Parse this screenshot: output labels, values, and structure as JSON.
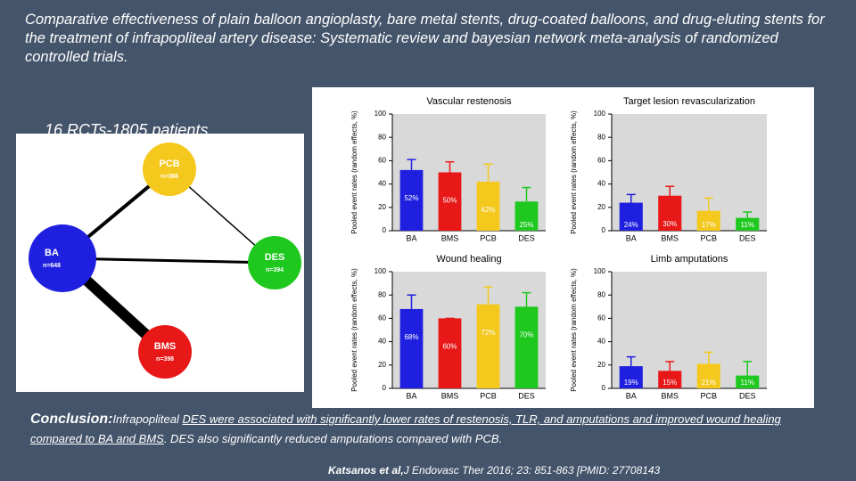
{
  "title": "Comparative effectiveness of plain balloon angioplasty, bare metal stents, drug-coated balloons, and drug-eluting stents for the treatment of infrapopliteal artery disease: Systematic review and bayesian network meta-analysis of randomized controlled trials.",
  "subtitle": "16 RCTs-1805 patients",
  "network": {
    "nodes": [
      {
        "label": "PCB",
        "n": "n=366",
        "color": "#f4c81c"
      },
      {
        "label": "BA",
        "n": "n=648",
        "color": "#1f1fe0"
      },
      {
        "label": "DES",
        "n": "n=394",
        "color": "#1ec81e"
      },
      {
        "label": "BMS",
        "n": "n=398",
        "color": "#e81818"
      }
    ]
  },
  "chart_data": [
    {
      "type": "bar",
      "title": "Vascular restenosis",
      "ylabel": "Pooled event rates (random effects, %)",
      "categories": [
        "BA",
        "BMS",
        "PCB",
        "DES"
      ],
      "values": [
        52,
        50,
        42,
        25
      ],
      "value_labels": [
        "52%",
        "50%",
        "42%",
        "25%"
      ],
      "errors": [
        9,
        9,
        15,
        12
      ],
      "colors": [
        "#1f1fe0",
        "#e81818",
        "#f4c81c",
        "#1ec81e"
      ],
      "ylim": [
        0,
        100
      ],
      "yticks": [
        0,
        20,
        40,
        60,
        80,
        100
      ]
    },
    {
      "type": "bar",
      "title": "Target lesion revascularization",
      "ylabel": "Pooled event rates (random effects, %)",
      "categories": [
        "BA",
        "BMS",
        "PCB",
        "DES"
      ],
      "values": [
        24,
        30,
        17,
        11
      ],
      "value_labels": [
        "24%",
        "30%",
        "17%",
        "11%"
      ],
      "errors": [
        7,
        8,
        11,
        5
      ],
      "colors": [
        "#1f1fe0",
        "#e81818",
        "#f4c81c",
        "#1ec81e"
      ],
      "ylim": [
        0,
        100
      ],
      "yticks": [
        0,
        20,
        40,
        60,
        80,
        100
      ]
    },
    {
      "type": "bar",
      "title": "Wound healing",
      "ylabel": "Pooled event rates (random effects, %)",
      "categories": [
        "BA",
        "BMS",
        "PCB",
        "DES"
      ],
      "values": [
        68,
        60,
        72,
        70
      ],
      "value_labels": [
        "68%",
        "60%",
        "72%",
        "70%"
      ],
      "errors": [
        12,
        0,
        15,
        12
      ],
      "colors": [
        "#1f1fe0",
        "#e81818",
        "#f4c81c",
        "#1ec81e"
      ],
      "ylim": [
        0,
        100
      ],
      "yticks": [
        0,
        20,
        40,
        60,
        80,
        100
      ]
    },
    {
      "type": "bar",
      "title": "Limb amputations",
      "ylabel": "Pooled event rates (random effects, %)",
      "categories": [
        "BA",
        "BMS",
        "PCB",
        "DES"
      ],
      "values": [
        19,
        15,
        21,
        11
      ],
      "value_labels": [
        "19%",
        "15%",
        "21%",
        "11%"
      ],
      "errors": [
        8,
        8,
        10,
        12
      ],
      "colors": [
        "#1f1fe0",
        "#e81818",
        "#f4c81c",
        "#1ec81e"
      ],
      "ylim": [
        0,
        100
      ],
      "yticks": [
        0,
        20,
        40,
        60,
        80,
        100
      ]
    }
  ],
  "conclusion": {
    "label": "Conclusion:",
    "intro": "Infrapopliteal ",
    "underlined": "DES were associated with significantly lower rates of restenosis, TLR, and amputations and improved wound healing compared to BA and BMS",
    "rest": ". DES also significantly reduced amputations compared with PCB."
  },
  "citation": {
    "author": "Katsanos et al,",
    "source": "J Endovasc Ther 2016; 23: 851-863 [PMID: 27708143"
  }
}
